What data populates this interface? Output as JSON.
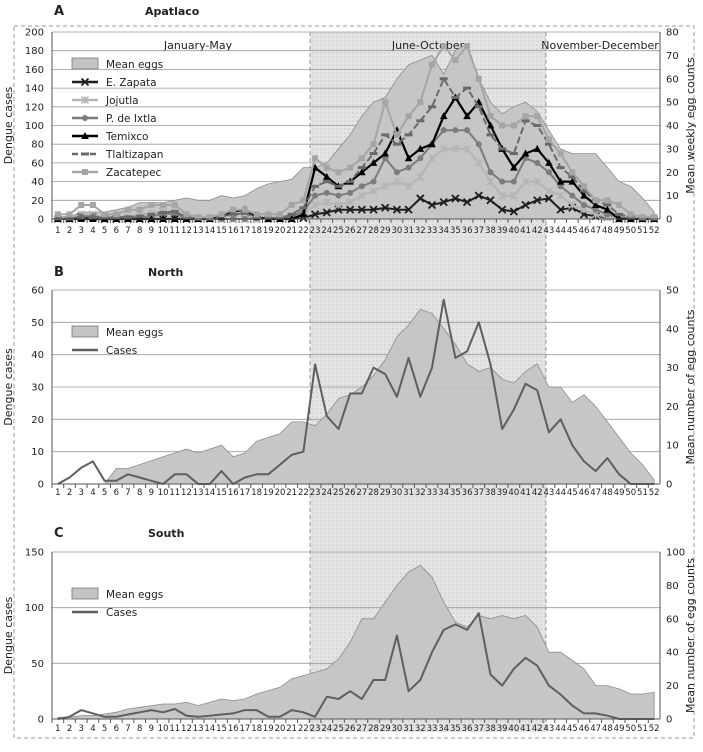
{
  "season_labels": [
    "January-May",
    "June-October",
    "November-December"
  ],
  "weeks": [
    1,
    2,
    3,
    4,
    5,
    6,
    7,
    8,
    9,
    10,
    11,
    12,
    13,
    14,
    15,
    16,
    17,
    18,
    19,
    20,
    21,
    22,
    23,
    24,
    25,
    26,
    27,
    28,
    29,
    30,
    31,
    32,
    33,
    34,
    35,
    36,
    37,
    38,
    39,
    40,
    41,
    42,
    43,
    44,
    45,
    46,
    47,
    48,
    49,
    50,
    51,
    52
  ],
  "colors": {
    "mean_eggs_fill": "#c4c4c4",
    "zapata": "#1e1e1e",
    "jojutla": "#b5b5b5",
    "ixtla": "#7c7c7c",
    "temixco": "#000000",
    "tlaltizapan": "#6a6a6a",
    "zacatepec": "#a5a5a5",
    "cases": "#5f5f5f"
  },
  "chart_data": [
    {
      "type": "area",
      "panel": "A",
      "title": "Apatlaco",
      "ylabel": "Dengue cases",
      "y2label": "Mean weekly egg counts",
      "ylim": [
        0,
        200
      ],
      "yticks": [
        0,
        20,
        40,
        60,
        80,
        100,
        120,
        140,
        160,
        180,
        200
      ],
      "y2lim": [
        0,
        80
      ],
      "y2ticks": [
        0,
        10,
        20,
        30,
        40,
        50,
        60,
        70,
        80
      ],
      "grid": true,
      "legend_position": "top-left",
      "series": [
        {
          "name": "Mean eggs",
          "kind": "area",
          "axis": "right",
          "values": [
            1,
            1,
            3,
            3,
            3,
            4,
            5,
            7,
            7,
            7,
            8,
            9,
            8,
            8,
            10,
            9,
            10,
            13,
            15,
            16,
            17,
            22,
            22,
            24,
            30,
            36,
            44,
            50,
            52,
            60,
            66,
            68,
            70,
            62,
            72,
            75,
            60,
            50,
            45,
            48,
            50,
            46,
            38,
            30,
            28,
            28,
            28,
            22,
            16,
            14,
            9,
            3
          ]
        },
        {
          "name": "E. Zapata",
          "kind": "line",
          "marker": "x",
          "axis": "left",
          "values": [
            0,
            0,
            2,
            2,
            0,
            0,
            0,
            0,
            0,
            0,
            0,
            0,
            0,
            0,
            0,
            0,
            0,
            0,
            0,
            0,
            0,
            1,
            5,
            7,
            10,
            10,
            10,
            10,
            12,
            10,
            10,
            22,
            15,
            18,
            22,
            18,
            25,
            20,
            10,
            8,
            15,
            20,
            22,
            10,
            12,
            5,
            3,
            2,
            0,
            0,
            0,
            0
          ]
        },
        {
          "name": "Jojutla",
          "kind": "line",
          "marker": "asterisk",
          "axis": "left",
          "values": [
            0,
            0,
            5,
            5,
            2,
            2,
            2,
            5,
            6,
            8,
            8,
            2,
            0,
            0,
            0,
            0,
            0,
            0,
            0,
            0,
            2,
            5,
            15,
            18,
            15,
            18,
            25,
            30,
            35,
            40,
            35,
            45,
            65,
            75,
            75,
            75,
            60,
            40,
            25,
            25,
            40,
            40,
            30,
            25,
            15,
            10,
            5,
            2,
            0,
            0,
            0,
            0
          ]
        },
        {
          "name": "P. de Ixtla",
          "kind": "line",
          "marker": "circle",
          "axis": "left",
          "values": [
            0,
            0,
            3,
            3,
            1,
            1,
            1,
            2,
            3,
            5,
            6,
            1,
            0,
            0,
            0,
            0,
            0,
            1,
            1,
            1,
            3,
            8,
            25,
            28,
            25,
            28,
            35,
            40,
            65,
            50,
            55,
            65,
            80,
            95,
            95,
            95,
            80,
            50,
            40,
            40,
            65,
            60,
            50,
            35,
            25,
            15,
            10,
            5,
            2,
            0,
            0,
            0
          ]
        },
        {
          "name": "Temixco",
          "kind": "line",
          "marker": "triangle",
          "axis": "left",
          "values": [
            0,
            0,
            0,
            0,
            0,
            0,
            0,
            0,
            0,
            0,
            0,
            0,
            0,
            0,
            2,
            8,
            10,
            2,
            0,
            0,
            0,
            5,
            55,
            45,
            35,
            40,
            50,
            60,
            70,
            95,
            65,
            75,
            80,
            110,
            130,
            110,
            125,
            100,
            75,
            55,
            70,
            75,
            60,
            40,
            40,
            25,
            15,
            10,
            0,
            0,
            0,
            0
          ]
        },
        {
          "name": "Tlaltizapan",
          "kind": "line",
          "marker": "dash",
          "axis": "left",
          "values": [
            0,
            0,
            2,
            2,
            1,
            2,
            2,
            3,
            5,
            7,
            8,
            2,
            0,
            0,
            3,
            5,
            6,
            2,
            1,
            1,
            5,
            12,
            35,
            40,
            35,
            40,
            55,
            70,
            90,
            80,
            90,
            105,
            120,
            150,
            130,
            140,
            120,
            90,
            75,
            70,
            105,
            100,
            80,
            55,
            45,
            30,
            20,
            15,
            5,
            2,
            0,
            0
          ]
        },
        {
          "name": "Zacatepec",
          "kind": "line",
          "marker": "square",
          "axis": "left",
          "values": [
            5,
            5,
            15,
            15,
            5,
            5,
            10,
            10,
            15,
            15,
            15,
            5,
            2,
            2,
            5,
            10,
            10,
            5,
            5,
            5,
            15,
            20,
            65,
            55,
            50,
            55,
            65,
            80,
            125,
            90,
            110,
            125,
            165,
            185,
            170,
            185,
            150,
            110,
            100,
            100,
            110,
            110,
            85,
            70,
            50,
            35,
            20,
            20,
            15,
            5,
            2,
            2
          ]
        }
      ]
    },
    {
      "type": "area",
      "panel": "B",
      "title": "North",
      "ylabel": "Dengue cases",
      "y2label": "Mean number of egg counts",
      "ylim": [
        0,
        60
      ],
      "yticks": [
        0,
        10,
        20,
        30,
        40,
        50,
        60
      ],
      "y2lim": [
        0,
        50
      ],
      "y2ticks": [
        0,
        10,
        20,
        30,
        40,
        50
      ],
      "grid": true,
      "legend_position": "left",
      "series": [
        {
          "name": "Mean eggs",
          "kind": "area",
          "axis": "right",
          "values": [
            0,
            0,
            0,
            0,
            0,
            4,
            4,
            5,
            6,
            7,
            8,
            9,
            8,
            9,
            10,
            7,
            8,
            11,
            12,
            13,
            16,
            16,
            15,
            18,
            22,
            23,
            25,
            28,
            32,
            38,
            41,
            45,
            44,
            40,
            36,
            31,
            29,
            30,
            27,
            26,
            29,
            31,
            25,
            25,
            21,
            23,
            20,
            16,
            12,
            8,
            5,
            1
          ]
        },
        {
          "name": "Cases",
          "kind": "line",
          "axis": "left",
          "values": [
            0,
            2,
            5,
            7,
            1,
            1,
            3,
            2,
            1,
            0,
            3,
            3,
            0,
            0,
            4,
            0,
            2,
            3,
            3,
            6,
            9,
            10,
            37,
            21,
            17,
            28,
            28,
            36,
            34,
            27,
            39,
            27,
            36,
            57,
            39,
            41,
            50,
            37,
            17,
            23,
            31,
            29,
            16,
            20,
            12,
            7,
            4,
            8,
            3,
            0,
            0,
            0
          ]
        }
      ]
    },
    {
      "type": "area",
      "panel": "C",
      "title": "South",
      "ylabel": "Dengue cases",
      "y2label": "Mean number of egg counts",
      "ylim": [
        0,
        150
      ],
      "yticks": [
        0,
        50,
        100,
        150
      ],
      "y2lim": [
        0,
        100
      ],
      "y2ticks": [
        0,
        20,
        40,
        60,
        80,
        100
      ],
      "grid": true,
      "legend_position": "left",
      "series": [
        {
          "name": "Mean eggs",
          "kind": "area",
          "axis": "right",
          "values": [
            1,
            1,
            2,
            2,
            3,
            4,
            6,
            7,
            8,
            9,
            9,
            10,
            8,
            10,
            12,
            11,
            12,
            15,
            17,
            19,
            24,
            26,
            28,
            30,
            36,
            46,
            60,
            60,
            70,
            80,
            88,
            92,
            85,
            70,
            58,
            55,
            62,
            60,
            62,
            60,
            62,
            55,
            40,
            40,
            35,
            30,
            20,
            20,
            18,
            15,
            15,
            16
          ]
        },
        {
          "name": "Cases",
          "kind": "line",
          "axis": "left",
          "values": [
            0,
            2,
            8,
            5,
            2,
            2,
            4,
            6,
            8,
            6,
            9,
            3,
            2,
            3,
            4,
            5,
            8,
            8,
            2,
            2,
            8,
            6,
            2,
            20,
            18,
            25,
            18,
            35,
            35,
            75,
            25,
            35,
            60,
            80,
            85,
            80,
            95,
            40,
            30,
            45,
            55,
            48,
            30,
            22,
            12,
            5,
            5,
            3,
            0,
            0,
            0,
            0
          ]
        }
      ]
    }
  ]
}
